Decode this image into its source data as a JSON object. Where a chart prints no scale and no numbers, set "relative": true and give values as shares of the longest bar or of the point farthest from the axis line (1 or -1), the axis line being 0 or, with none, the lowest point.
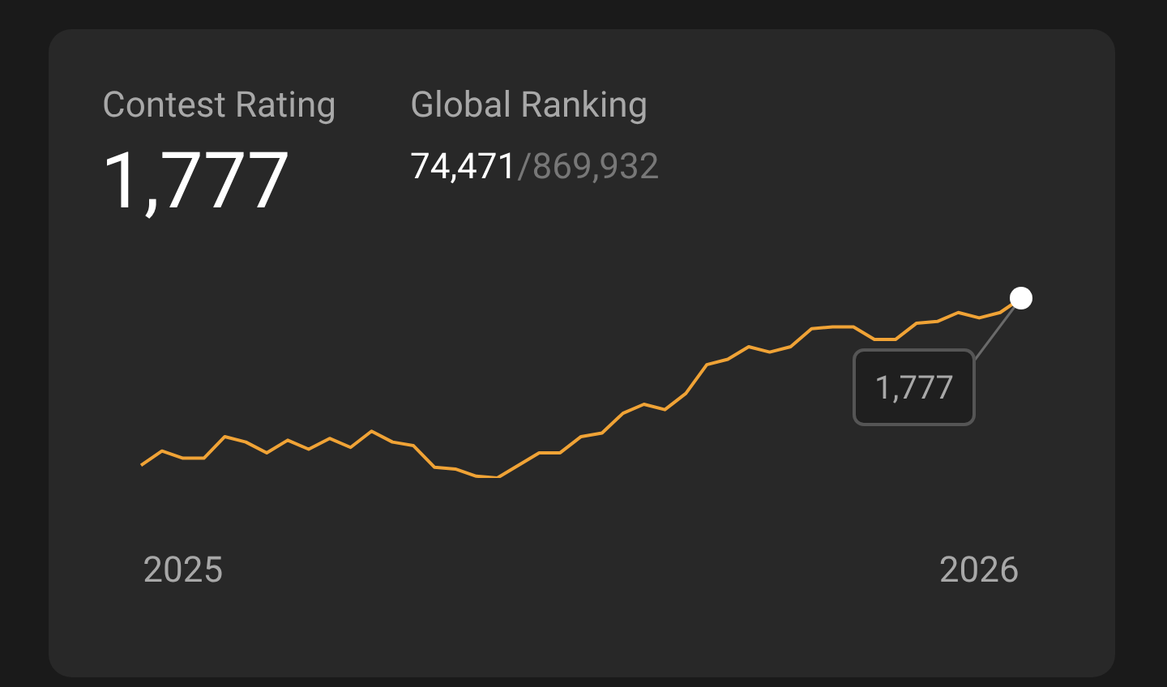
{
  "chart_data": {
    "type": "line",
    "title": "Contest Rating",
    "relative": true,
    "color": "#f0a336",
    "categories": [
      null,
      null,
      "2025",
      null,
      null,
      null,
      null,
      null,
      null,
      null,
      null,
      null,
      null,
      null,
      null,
      null,
      null,
      null,
      null,
      null,
      null,
      null,
      null,
      null,
      null,
      null,
      null,
      null,
      null,
      null,
      null,
      null,
      null,
      null,
      null,
      null,
      null,
      null,
      null,
      null,
      "2026",
      null,
      null
    ],
    "values": [
      0.07,
      0.15,
      0.11,
      0.11,
      0.23,
      0.2,
      0.14,
      0.21,
      0.16,
      0.22,
      0.17,
      0.26,
      0.2,
      0.18,
      0.06,
      0.05,
      0.01,
      0,
      0.07,
      0.14,
      0.14,
      0.23,
      0.25,
      0.36,
      0.41,
      0.38,
      0.47,
      0.63,
      0.66,
      0.73,
      0.7,
      0.73,
      0.83,
      0.84,
      0.84,
      0.77,
      0.77,
      0.86,
      0.87,
      0.92,
      0.89,
      0.92,
      1
    ],
    "annotations": [
      "1,777",
      "1,777",
      "Global Ranking",
      "74,471",
      "/869,932"
    ]
  }
}
